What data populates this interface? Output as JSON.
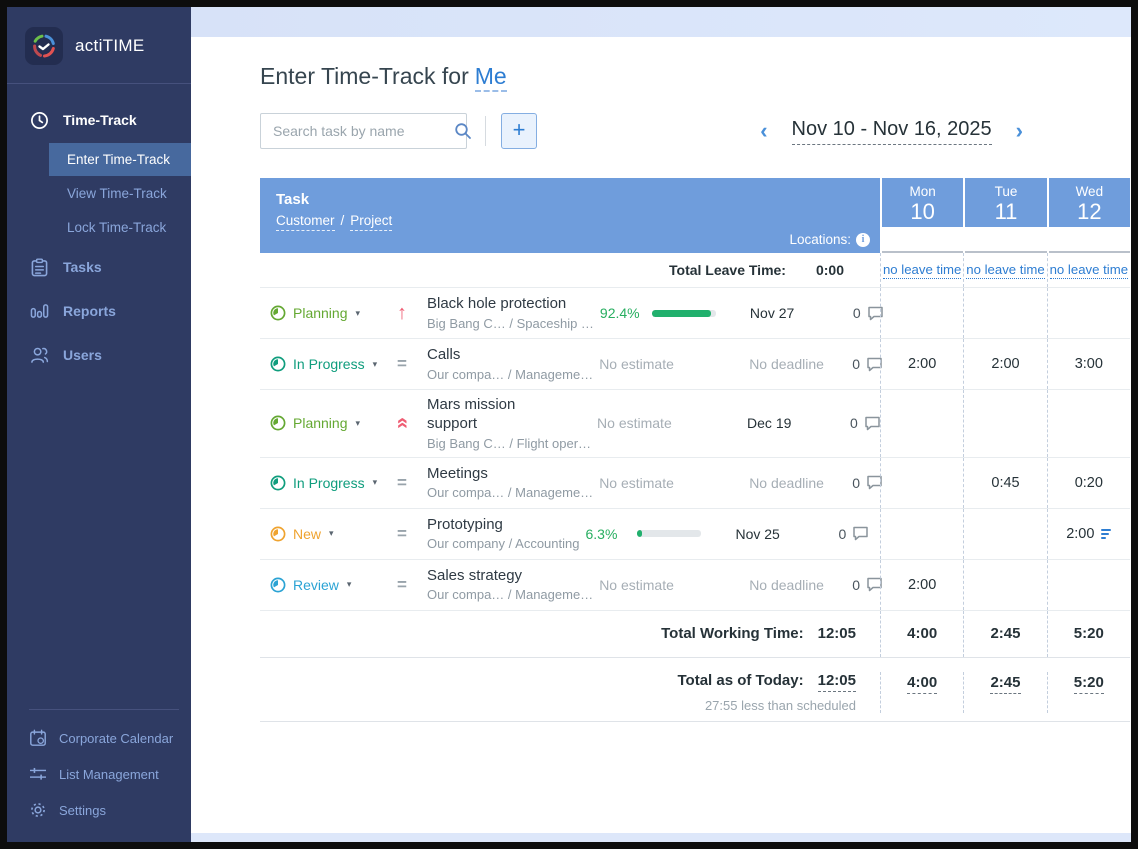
{
  "app": {
    "logo_text": "actiTIME"
  },
  "sidebar": {
    "nav": [
      {
        "label": "Time-Track",
        "icon": "clock-icon",
        "active": true,
        "children": [
          {
            "label": "Enter Time-Track",
            "active": true
          },
          {
            "label": "View Time-Track"
          },
          {
            "label": "Lock Time-Track"
          }
        ]
      },
      {
        "label": "Tasks",
        "icon": "tasks-icon"
      },
      {
        "label": "Reports",
        "icon": "reports-icon"
      },
      {
        "label": "Users",
        "icon": "users-icon"
      }
    ],
    "footer": [
      {
        "label": "Corporate Calendar",
        "icon": "calendar-icon"
      },
      {
        "label": "List Management",
        "icon": "sliders-icon"
      },
      {
        "label": "Settings",
        "icon": "gear-icon"
      }
    ],
    "collapse_glyph": "‹"
  },
  "header": {
    "title": "Enter Time-Track for",
    "subject": "Me"
  },
  "toolbar": {
    "search_placeholder": "Search task by name",
    "add_button": "+"
  },
  "date_nav": {
    "prev": "‹",
    "range": "Nov 10 - Nov 16, 2025",
    "next": "›"
  },
  "table": {
    "head": {
      "task": "Task",
      "customer": "Customer",
      "sep": "/",
      "project": "Project",
      "locations": "Locations:",
      "info": "i"
    },
    "days": [
      {
        "dow": "Mon",
        "num": "10",
        "leave": "no leave time"
      },
      {
        "dow": "Tue",
        "num": "11",
        "leave": "no leave time"
      },
      {
        "dow": "Wed",
        "num": "12",
        "leave": "no leave time"
      }
    ],
    "leave_total": {
      "label": "Total Leave Time:",
      "value": "0:00"
    },
    "rows": [
      {
        "status": "Planning",
        "status_key": "planning",
        "status_color": "#64a832",
        "priority": "up",
        "name": "Black hole protection",
        "path": "Big Bang C… / Spaceship …",
        "estimate": "92.4%",
        "progress_pct": 92.4,
        "deadline": "Nov 27",
        "comments": "0",
        "cells": [
          "",
          "",
          ""
        ]
      },
      {
        "status": "In Progress",
        "status_key": "inprogress",
        "status_color": "#0f9d7d",
        "priority": "eq",
        "name": "Calls",
        "path": "Our compa… / Manageme…",
        "estimate": "No estimate",
        "deadline": "No deadline",
        "comments": "0",
        "cells": [
          "2:00",
          "2:00",
          "3:00"
        ]
      },
      {
        "status": "Planning",
        "status_key": "planning",
        "status_color": "#64a832",
        "priority": "double-up",
        "name": "Mars mission support",
        "path": "Big Bang C… / Flight oper…",
        "estimate": "No estimate",
        "deadline": "Dec 19",
        "comments": "0",
        "cells": [
          "",
          "",
          ""
        ]
      },
      {
        "status": "In Progress",
        "status_key": "inprogress",
        "status_color": "#0f9d7d",
        "priority": "eq",
        "name": "Meetings",
        "path": "Our compa… / Manageme…",
        "estimate": "No estimate",
        "deadline": "No deadline",
        "comments": "0",
        "cells": [
          "",
          "0:45",
          "0:20"
        ]
      },
      {
        "status": "New",
        "status_key": "new",
        "status_color": "#efa32f",
        "priority": "eq",
        "name": "Prototyping",
        "path": "Our company / Accounting",
        "estimate": "6.3%",
        "progress_pct": 6.3,
        "deadline": "Nov 25",
        "comments": "0",
        "cells": [
          "",
          "",
          "2:00"
        ],
        "note_cell": 2
      },
      {
        "status": "Review",
        "status_key": "review",
        "status_color": "#2ba3d4",
        "priority": "eq",
        "name": "Sales strategy",
        "path": "Our compa… / Manageme…",
        "estimate": "No estimate",
        "deadline": "No deadline",
        "comments": "0",
        "cells": [
          "2:00",
          "",
          ""
        ]
      }
    ],
    "totals": {
      "working": {
        "label": "Total Working Time:",
        "value": "12:05",
        "cells": [
          "4:00",
          "2:45",
          "5:20"
        ]
      },
      "today": {
        "label": "Total as of Today:",
        "value": "12:05",
        "cells": [
          "4:00",
          "2:45",
          "5:20"
        ],
        "note": "27:55 less than scheduled"
      }
    }
  },
  "colors": {
    "sidebar_bg": "#2f3b63",
    "sidebar_link": "#8aa6db",
    "active_item_bg": "#47699e",
    "table_header": "#6f9ddc",
    "link_blue": "#2d7dd2",
    "progress_green": "#21b06d",
    "status_planning": "#64a832",
    "status_inprogress": "#0f9d7d",
    "status_new": "#efa32f",
    "status_review": "#2ba3d4",
    "priority_red": "#ef5d73",
    "top_strip": "#dde7fa"
  }
}
